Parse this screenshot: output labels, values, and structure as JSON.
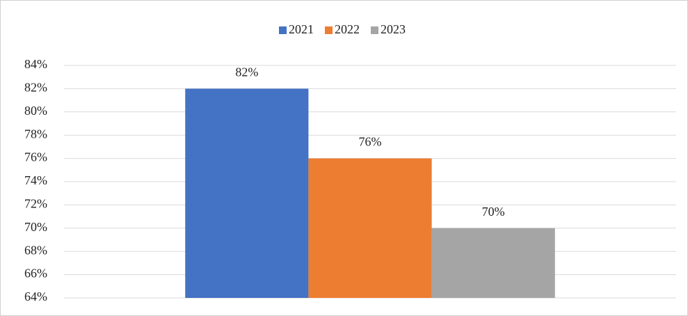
{
  "chart_data": {
    "type": "bar",
    "categories": [
      null
    ],
    "series": [
      {
        "name": "2021",
        "color": "#4472c4",
        "values": [
          82
        ],
        "value_labels": [
          "82%"
        ]
      },
      {
        "name": "2022",
        "color": "#ed7d31",
        "values": [
          76
        ],
        "value_labels": [
          "76%"
        ]
      },
      {
        "name": "2023",
        "color": "#a5a5a5",
        "values": [
          70
        ],
        "value_labels": [
          "70%"
        ]
      }
    ],
    "ylim": [
      64,
      84
    ],
    "yticks": [
      {
        "value": 64,
        "label": "64%"
      },
      {
        "value": 66,
        "label": "66%"
      },
      {
        "value": 68,
        "label": "68%"
      },
      {
        "value": 70,
        "label": "70%"
      },
      {
        "value": 72,
        "label": "72%"
      },
      {
        "value": 74,
        "label": "74%"
      },
      {
        "value": 76,
        "label": "76%"
      },
      {
        "value": 78,
        "label": "78%"
      },
      {
        "value": 80,
        "label": "80%"
      },
      {
        "value": 82,
        "label": "82%"
      },
      {
        "value": 84,
        "label": "84%"
      }
    ],
    "grid": true,
    "legend": "top"
  }
}
